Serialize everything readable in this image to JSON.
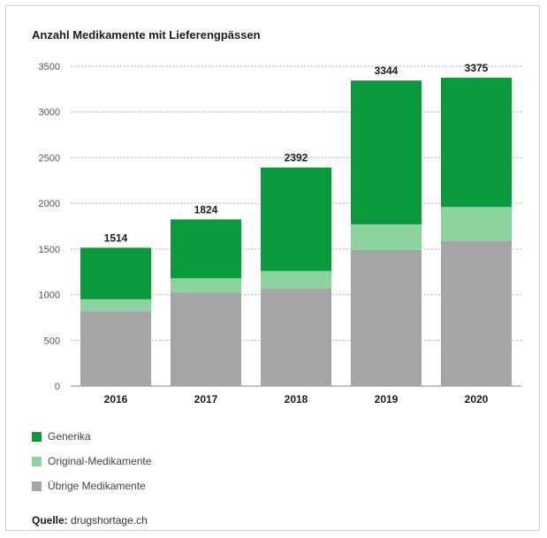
{
  "chart_data": {
    "type": "bar",
    "stacked": true,
    "title": "Anzahl Medikamente mit Lieferengpässen",
    "categories": [
      "2016",
      "2017",
      "2018",
      "2019",
      "2020"
    ],
    "series": [
      {
        "name": "Übrige Medikamente",
        "color": "#a5a5a5",
        "values": [
          820,
          1020,
          1070,
          1490,
          1590
        ]
      },
      {
        "name": "Original-Medikamente",
        "color": "#8cd3a0",
        "values": [
          130,
          160,
          190,
          280,
          370
        ]
      },
      {
        "name": "Generika",
        "color": "#0a9a3c",
        "values": [
          564,
          644,
          1132,
          1574,
          1415
        ]
      }
    ],
    "totals": [
      1514,
      1824,
      2392,
      3344,
      3375
    ],
    "ylim": [
      0,
      3500
    ],
    "yticks": [
      "0",
      "500",
      "1000",
      "1500",
      "2000",
      "2500",
      "3000",
      "3500"
    ],
    "grid": true,
    "legend_position": "bottom-left",
    "xlabel": "",
    "ylabel": ""
  },
  "legend": [
    {
      "label": "Generika",
      "color": "#0a9a3c"
    },
    {
      "label": "Original-Medikamente",
      "color": "#8cd3a0"
    },
    {
      "label": "Übrige Medikamente",
      "color": "#a5a5a5"
    }
  ],
  "source": {
    "label": "Quelle:",
    "text": " drugshortage.ch"
  }
}
